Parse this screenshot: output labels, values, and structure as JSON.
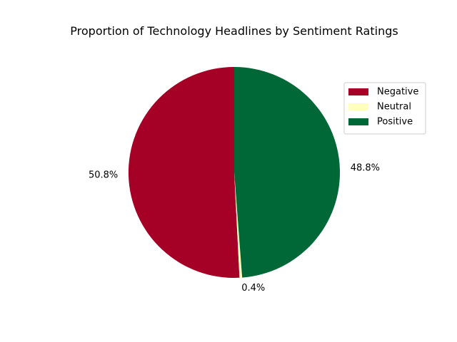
{
  "chart_data": {
    "type": "pie",
    "title": "Proportion of Technology Headlines by Sentiment Ratings",
    "labels": [
      "Negative",
      "Neutral",
      "Positive"
    ],
    "values": [
      50.8,
      0.4,
      48.8
    ],
    "value_labels": [
      "50.8%",
      "0.4%",
      "48.8%"
    ],
    "colors": [
      "#a50026",
      "#ffffbf",
      "#006837"
    ],
    "start_angle_deg": 90,
    "direction": "counterclockwise",
    "legend_position": "upper-right"
  }
}
